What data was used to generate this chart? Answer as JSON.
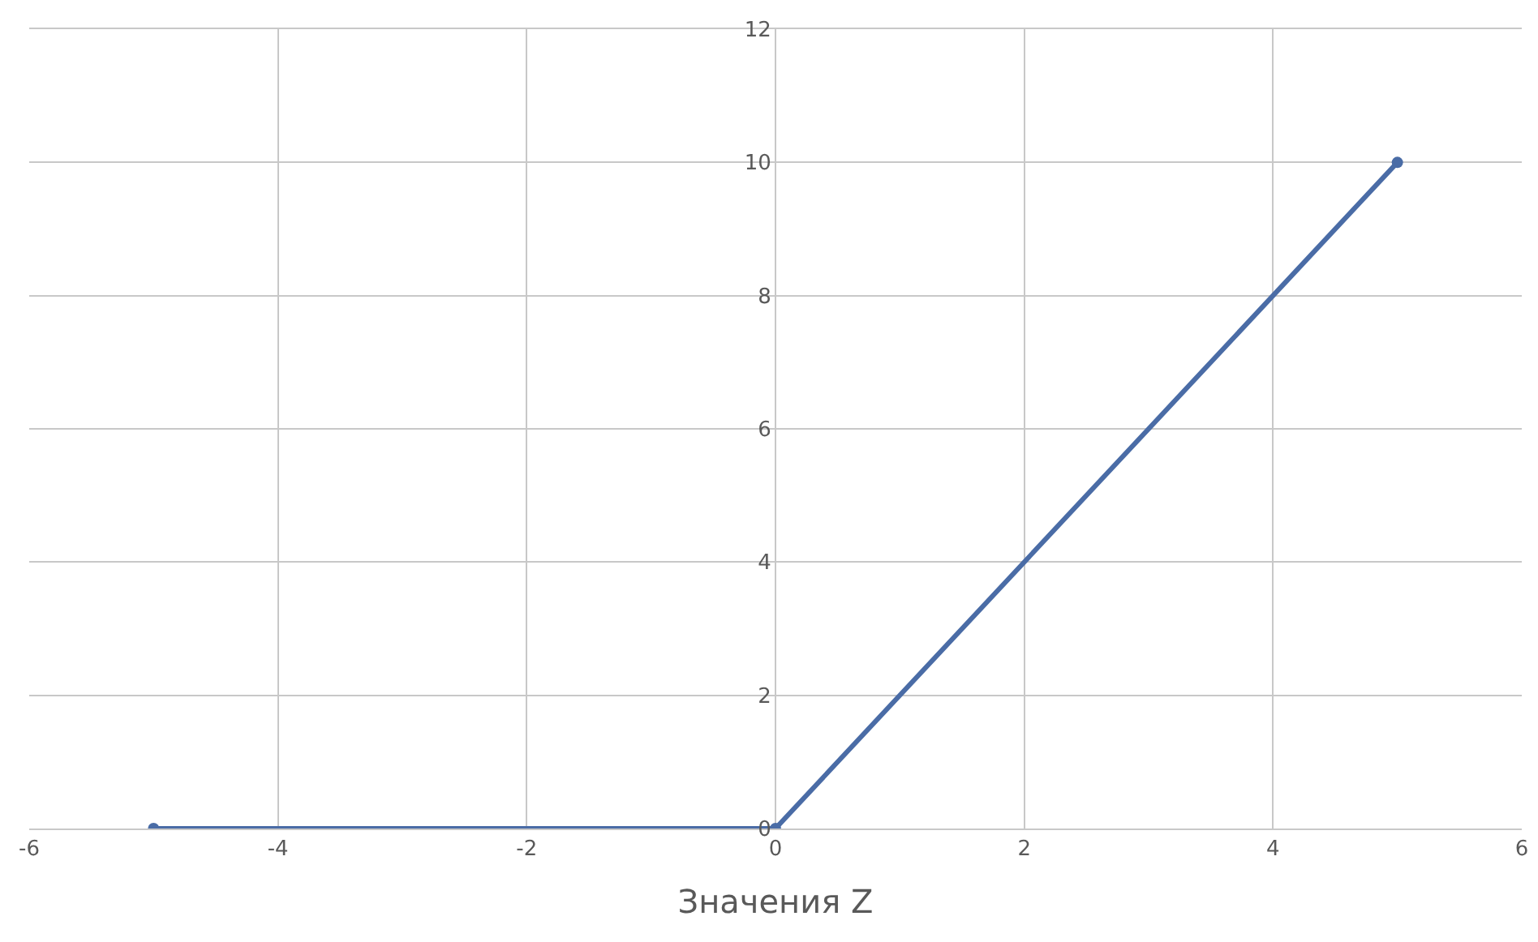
{
  "chart_data": {
    "type": "line",
    "xlabel": "Значения Z",
    "x": [
      -5,
      0,
      5
    ],
    "series": [
      {
        "color": "#4a6ca6",
        "values": [
          0,
          0,
          10
        ]
      }
    ],
    "xlim": [
      -6,
      6
    ],
    "xticks": [
      -6,
      -4,
      -2,
      0,
      2,
      4,
      6
    ],
    "ylim": [
      0,
      12
    ],
    "yticks": [
      0,
      2,
      4,
      6,
      8,
      10,
      12
    ],
    "grid": true,
    "marker": "circle",
    "line_style": "solid"
  }
}
